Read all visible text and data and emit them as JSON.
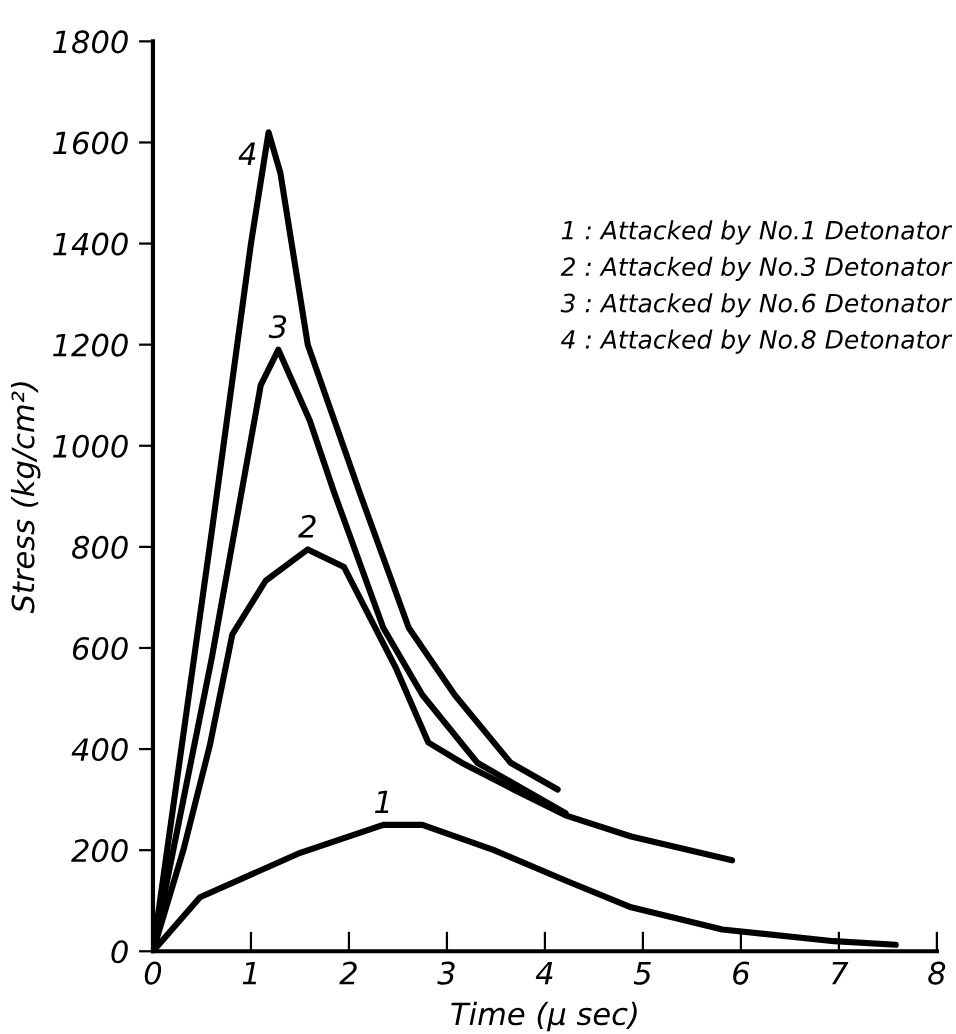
{
  "chart_data": {
    "type": "line",
    "xlabel": "Time (μ sec)",
    "ylabel": "Stress (kg/cm²)",
    "xlim": [
      0,
      8
    ],
    "ylim": [
      0,
      1800
    ],
    "xticks": [
      0,
      1,
      2,
      3,
      4,
      5,
      6,
      7,
      8
    ],
    "yticks": [
      0,
      200,
      400,
      600,
      800,
      1000,
      1200,
      1400,
      1600,
      1800
    ],
    "grid": false,
    "legend": false,
    "marker": "none",
    "line_style": "solid",
    "series": [
      {
        "name": "1",
        "color": "#000000",
        "x": [
          0,
          0.48,
          1.48,
          2.35,
          2.75,
          3.48,
          4.21,
          4.88,
          5.81,
          6.95,
          7.58
        ],
        "values": [
          0,
          107,
          193,
          250,
          250,
          200,
          140,
          87,
          43,
          20,
          13
        ]
      },
      {
        "name": "2",
        "color": "#000000",
        "x": [
          0,
          0.31,
          0.58,
          0.81,
          1.15,
          1.58,
          1.95,
          2.48,
          2.81,
          3.15,
          3.68,
          4.21,
          4.88,
          5.91
        ],
        "values": [
          0,
          200,
          407,
          627,
          733,
          795,
          760,
          560,
          413,
          373,
          320,
          269,
          227,
          180
        ]
      },
      {
        "name": "3",
        "color": "#000000",
        "x": [
          0,
          0.6,
          1.1,
          1.28,
          1.6,
          1.85,
          2.35,
          2.75,
          3.31,
          4.21
        ],
        "values": [
          0,
          580,
          1120,
          1190,
          1050,
          907,
          640,
          507,
          373,
          273
        ]
      },
      {
        "name": "4",
        "color": "#000000",
        "x": [
          0,
          0.6,
          1.0,
          1.18,
          1.3,
          1.58,
          2.11,
          2.61,
          3.08,
          3.65,
          4.13
        ],
        "values": [
          0,
          830,
          1400,
          1620,
          1540,
          1200,
          907,
          640,
          507,
          373,
          320
        ]
      }
    ],
    "annotations": [
      "1 : Attacked by No.1 Detonator",
      "2 : Attacked by No.3 Detonator",
      "3 : Attacked by No.6 Detonator",
      "4 : Attacked by No.8 Detonator"
    ]
  }
}
